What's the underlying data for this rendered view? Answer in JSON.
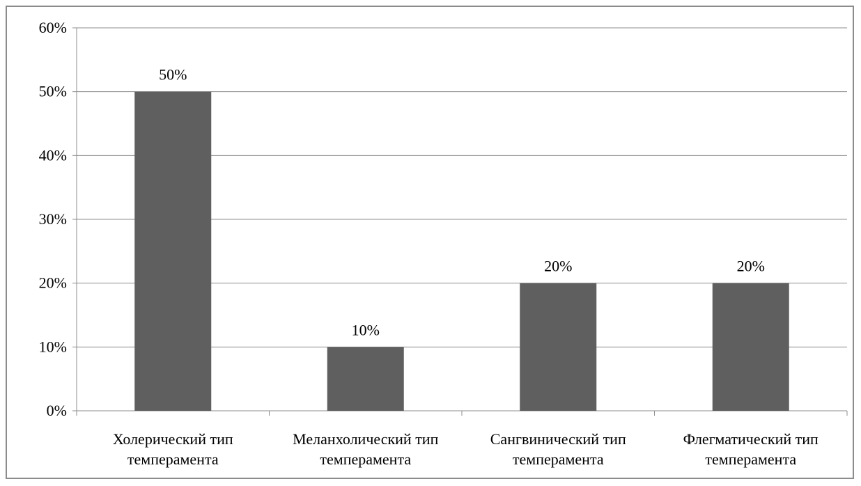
{
  "chart_data": {
    "type": "bar",
    "categories": [
      [
        "Холерический тип",
        "темперамента"
      ],
      [
        "Меланхолический тип",
        "темперамента"
      ],
      [
        "Сангвинический тип",
        "темперамента"
      ],
      [
        "Флегматический тип",
        "темперамента"
      ]
    ],
    "values": [
      50,
      10,
      20,
      20
    ],
    "data_labels": [
      "50%",
      "10%",
      "20%",
      "20%"
    ],
    "y_ticks": [
      "0%",
      "10%",
      "20%",
      "30%",
      "40%",
      "50%",
      "60%"
    ],
    "ylim": [
      0,
      60
    ],
    "grid": true,
    "legend": "none",
    "title": "",
    "xlabel": "",
    "ylabel": "",
    "colors": {
      "bar": "#5f5f5f",
      "grid": "#8c8c8c",
      "axis": "#8c8c8c"
    }
  }
}
